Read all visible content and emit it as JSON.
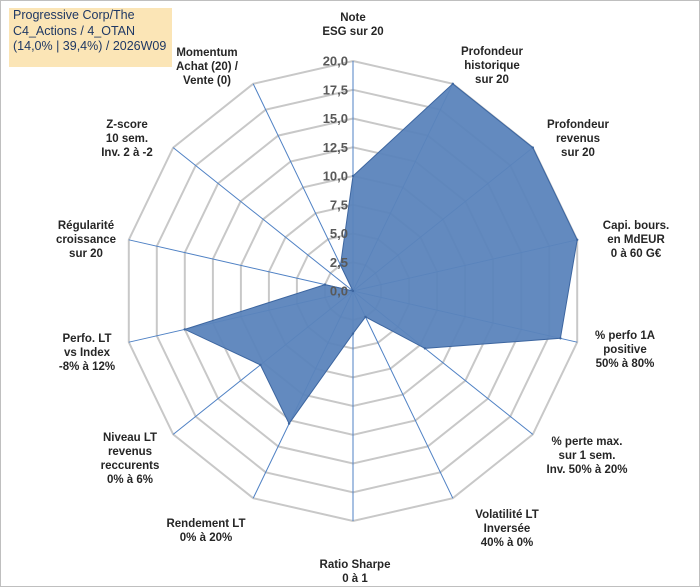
{
  "title_lines": [
    "Progressive Corp/The",
    "C4_Actions / 4_OTAN",
    "(14,0% | 39,4%) / 2026W09"
  ],
  "colors": {
    "fill": "#5b84bc",
    "stroke": "#3d66a0",
    "grid": "#c8c8c8",
    "spoke": "#4f81c4",
    "title_bg": "#fbe5b6",
    "title_text": "#1f3864"
  },
  "chart_data": {
    "type": "radar",
    "rlim": [
      0,
      20
    ],
    "tick_values": [
      0,
      2.5,
      5,
      7.5,
      10,
      12.5,
      15,
      17.5,
      20
    ],
    "tick_labels": [
      "0,0",
      "2,5",
      "5,0",
      "7,5",
      "10,0",
      "12,5",
      "15,0",
      "17,5",
      "20,0"
    ],
    "grid": true,
    "axes": [
      {
        "label": [
          "Note",
          "ESG sur 20"
        ],
        "value": 10
      },
      {
        "label": [
          "Profondeur",
          "historique",
          "sur 20"
        ],
        "value": 20
      },
      {
        "label": [
          "Profondeur",
          "revenus",
          "sur 20"
        ],
        "value": 20
      },
      {
        "label": [
          "Capi. bours.",
          "en MdEUR",
          "0 à 60 G€"
        ],
        "value": 20
      },
      {
        "label": [
          "% perfo 1A",
          "positive",
          "50% à 80%"
        ],
        "value": 18.5
      },
      {
        "label": [
          "% perte max.",
          "sur 1 sem.",
          "Inv. 50% à 20%"
        ],
        "value": 8
      },
      {
        "label": [
          "Volatilité LT",
          "Inversée",
          "40% à 0%"
        ],
        "value": 2.5
      },
      {
        "label": [
          "Ratio Sharpe",
          "0 à 1"
        ],
        "value": 3.7
      },
      {
        "label": [
          "Rendement LT",
          "0% à 20%"
        ],
        "value": 12.8
      },
      {
        "label": [
          "Niveau LT",
          "revenus",
          "reccurents",
          "0% à 6%"
        ],
        "value": 10.3
      },
      {
        "label": [
          "Perfo. LT",
          "vs Index",
          "-8% à 12%"
        ],
        "value": 15
      },
      {
        "label": [
          "Régularité",
          "croissance",
          "sur 20"
        ],
        "value": 2.5
      },
      {
        "label": [
          "Z-score",
          "10 sem.",
          "Inv. 2 à -2"
        ],
        "value": 0
      },
      {
        "label": [
          "Momentum",
          "Achat (20) /",
          "Vente (0)"
        ],
        "value": 2.5
      }
    ]
  }
}
